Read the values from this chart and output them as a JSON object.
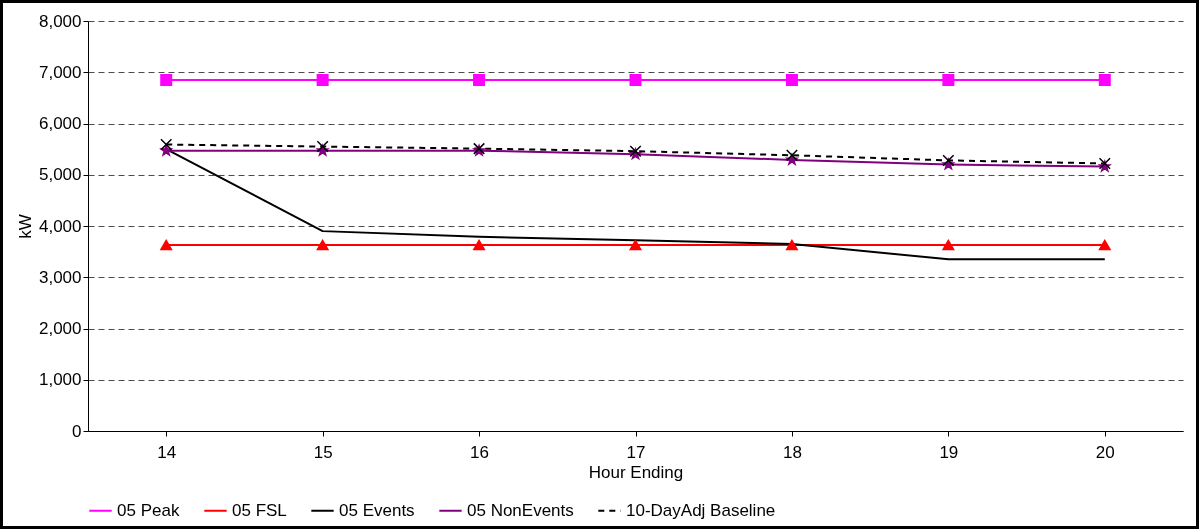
{
  "chart_data": {
    "type": "line",
    "xlabel": "Hour Ending",
    "ylabel": "kW",
    "categories": [
      "14",
      "15",
      "16",
      "17",
      "18",
      "19",
      "20"
    ],
    "series": [
      {
        "name": "05 Peak",
        "color": "#ff00ff",
        "marker": "square",
        "line_style": "solid",
        "values": [
          6850,
          6850,
          6850,
          6850,
          6850,
          6850,
          6850
        ]
      },
      {
        "name": "05 FSL",
        "color": "#ff0000",
        "marker": "triangle",
        "line_style": "solid",
        "values": [
          3630,
          3630,
          3630,
          3630,
          3630,
          3630,
          3630
        ]
      },
      {
        "name": "05 Events",
        "color": "#000000",
        "marker": "none",
        "line_style": "solid",
        "values": [
          5500,
          3900,
          3790,
          3720,
          3650,
          3350,
          3350
        ]
      },
      {
        "name": "05 NonEvents",
        "color": "#800080",
        "marker": "star",
        "line_style": "solid",
        "values": [
          5470,
          5470,
          5470,
          5400,
          5290,
          5200,
          5160
        ]
      },
      {
        "name": "10-DayAdj Baseline",
        "color": "#000000",
        "marker": "cross",
        "line_style": "dashed",
        "values": [
          5590,
          5550,
          5510,
          5460,
          5380,
          5280,
          5220
        ]
      }
    ],
    "ylim": [
      0,
      8000
    ],
    "yticks": [
      0,
      {
        "value": 1000,
        "label": "1,000"
      },
      {
        "value": 2000,
        "label": "2,000"
      },
      {
        "value": 3000,
        "label": "3,000"
      },
      {
        "value": 4000,
        "label": "4,000"
      },
      {
        "value": 5000,
        "label": "5,000"
      },
      {
        "value": 6000,
        "label": "6,000"
      },
      {
        "value": 7000,
        "label": "7,000"
      },
      {
        "value": 8000,
        "label": "8,000"
      }
    ],
    "grid": "y",
    "legend": "bottom"
  }
}
